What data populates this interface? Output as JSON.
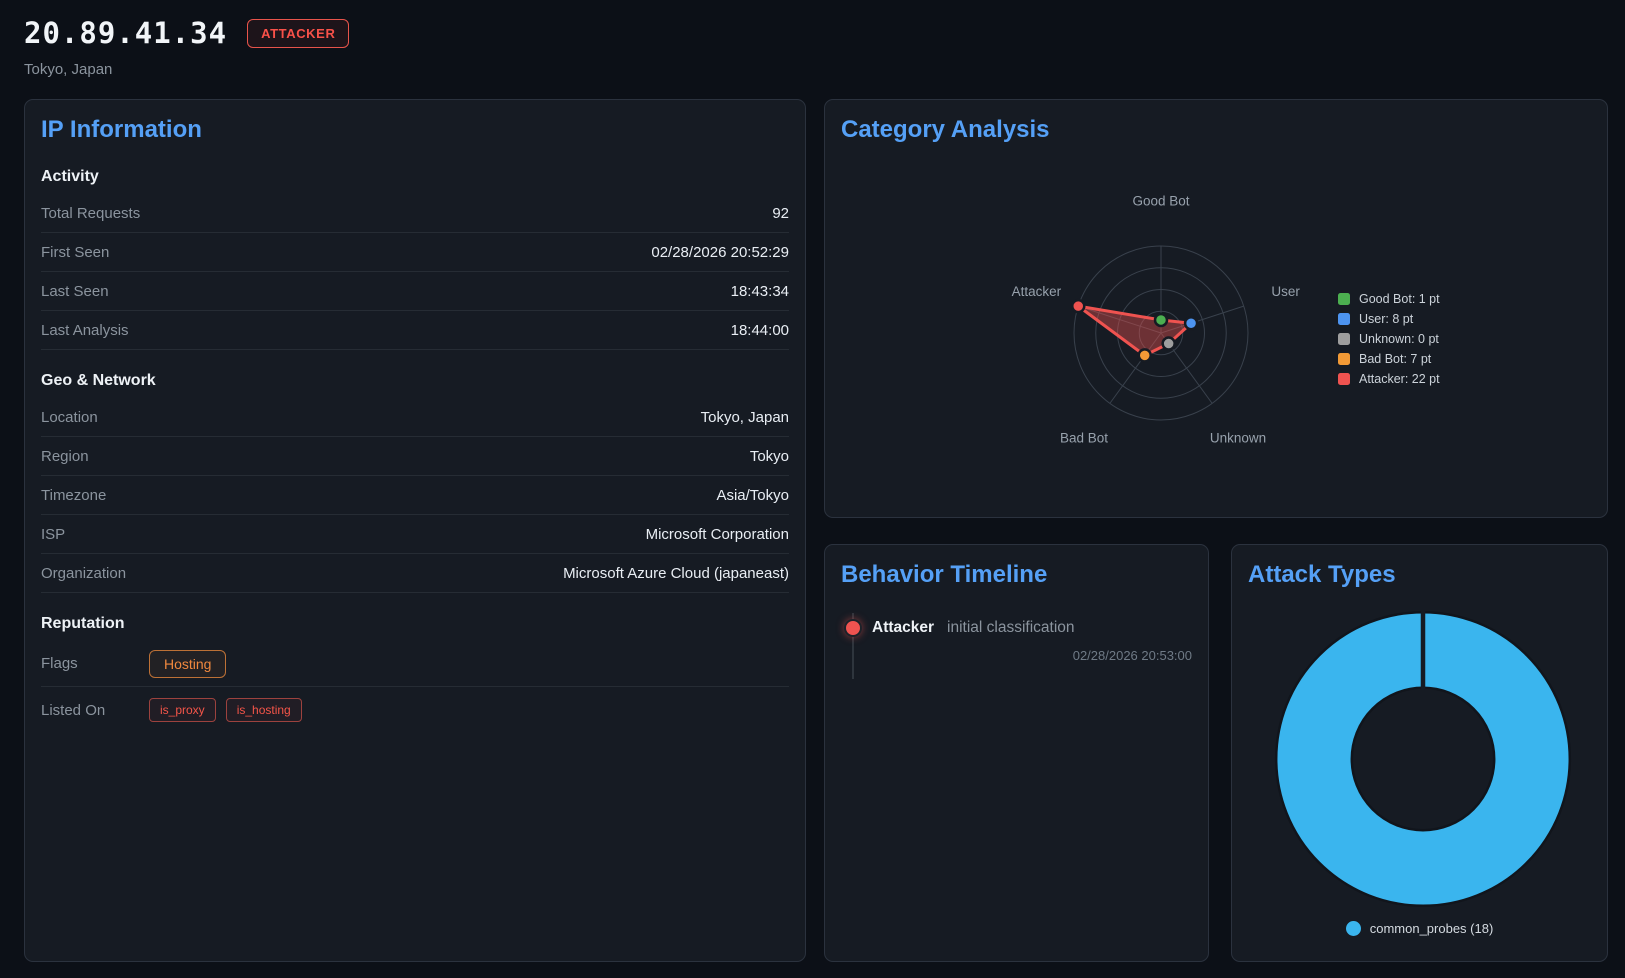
{
  "theme": {
    "accent_blue": "#55a0f6",
    "danger_red": "#f85149",
    "warning_orange": "#f0883e",
    "page_bg": "#0c1017",
    "panel_bg": "#161b23"
  },
  "header": {
    "ip_address": "20.89.41.34",
    "classification_badge": "ATTACKER",
    "location": "Tokyo, Japan"
  },
  "ip_information": {
    "title": "IP Information",
    "sections": [
      {
        "heading": "Activity",
        "rows": [
          {
            "label": "Total Requests",
            "value": "92"
          },
          {
            "label": "First Seen",
            "value": "02/28/2026 20:52:29"
          },
          {
            "label": "Last Seen",
            "value": "18:43:34"
          },
          {
            "label": "Last Analysis",
            "value": "18:44:00"
          }
        ]
      },
      {
        "heading": "Geo & Network",
        "rows": [
          {
            "label": "Location",
            "value": "Tokyo, Japan"
          },
          {
            "label": "Region",
            "value": "Tokyo"
          },
          {
            "label": "Timezone",
            "value": "Asia/Tokyo"
          },
          {
            "label": "ISP",
            "value": "Microsoft Corporation"
          },
          {
            "label": "Organization",
            "value": "Microsoft Azure Cloud (japaneast)"
          }
        ]
      },
      {
        "heading": "Reputation",
        "rows": [
          {
            "label": "Flags",
            "badges": [
              {
                "text": "Hosting",
                "style": "orange"
              }
            ]
          },
          {
            "label": "Listed On",
            "badges": [
              {
                "text": "is_proxy",
                "style": "red"
              },
              {
                "text": "is_hosting",
                "style": "red"
              }
            ]
          }
        ]
      }
    ]
  },
  "behavior_timeline": {
    "title": "Behavior Timeline",
    "events": [
      {
        "category": "Attacker",
        "description": "initial classification",
        "timestamp": "02/28/2026 20:53:00",
        "color": "#ef5350"
      }
    ]
  },
  "chart_data": [
    {
      "name": "category_analysis",
      "type": "radar",
      "title": "Category Analysis",
      "axes": [
        "Good Bot",
        "User",
        "Unknown",
        "Bad Bot",
        "Attacker"
      ],
      "values": [
        1,
        8,
        0,
        7,
        22
      ],
      "unit": "pt",
      "max": 22,
      "ring_count": 4,
      "grid": true,
      "series_color": "#ef5350",
      "series_fill": "rgba(239,83,80,0.40)",
      "point_colors": [
        "#4caf50",
        "#4d94f0",
        "#9e9e9e",
        "#f29a36",
        "#ef5350"
      ],
      "legend_position": "right",
      "legend": [
        "Good Bot: 1 pt",
        "User: 8 pt",
        "Unknown: 0 pt",
        "Bad Bot: 7 pt",
        "Attacker: 22 pt"
      ]
    },
    {
      "name": "attack_types",
      "type": "donut",
      "title": "Attack Types",
      "segments": [
        {
          "label": "common_probes",
          "value": 18,
          "color": "#3ab5ee"
        }
      ],
      "legend_position": "bottom",
      "legend": [
        "common_probes (18)"
      ]
    }
  ]
}
